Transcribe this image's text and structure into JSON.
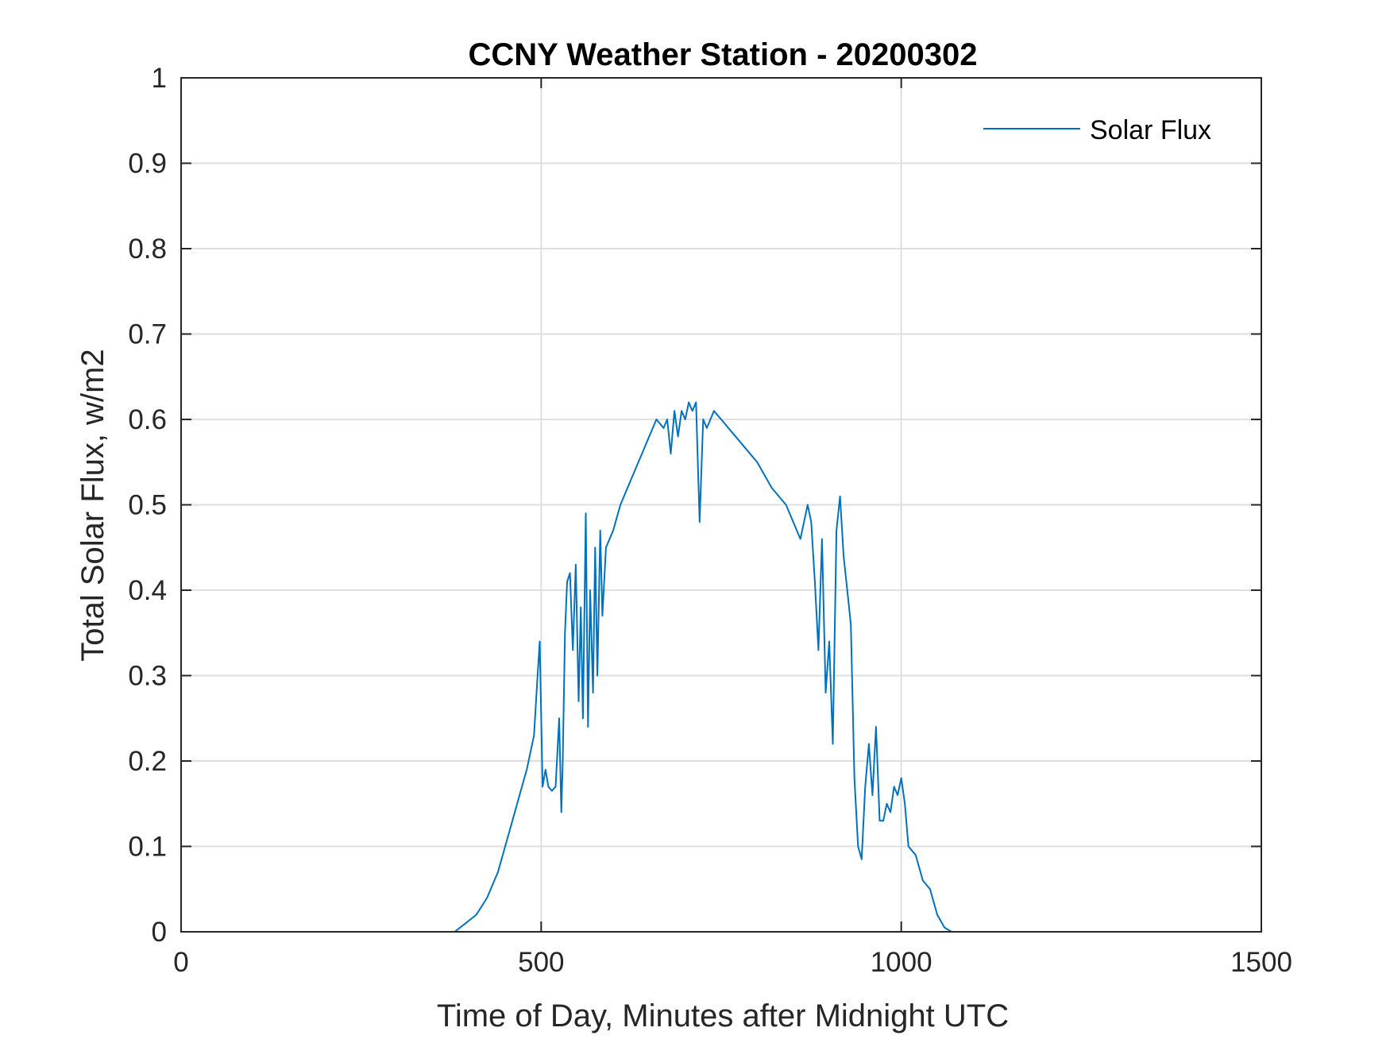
{
  "chart_data": {
    "type": "line",
    "title": "CCNY Weather Station - 20200302",
    "xlabel": "Time of Day, Minutes after Midnight UTC",
    "ylabel": "Total Solar Flux, w/m2",
    "xlim": [
      0,
      1500
    ],
    "ylim": [
      0,
      1
    ],
    "xticks": [
      0,
      500,
      1000,
      1500
    ],
    "yticks": [
      0,
      0.1,
      0.2,
      0.3,
      0.4,
      0.5,
      0.6,
      0.7,
      0.8,
      0.9,
      1
    ],
    "xtick_labels": [
      "0",
      "500",
      "1000",
      "1500"
    ],
    "ytick_labels": [
      "0",
      "0.1",
      "0.2",
      "0.3",
      "0.4",
      "0.5",
      "0.6",
      "0.7",
      "0.8",
      "0.9",
      "1"
    ],
    "grid": true,
    "legend_position": "top-right",
    "series": [
      {
        "name": "Solar Flux",
        "color": "#0072bd",
        "x": [
          0,
          380,
          395,
          410,
          425,
          440,
          450,
          460,
          470,
          480,
          490,
          495,
          498,
          502,
          506,
          510,
          515,
          520,
          525,
          528,
          530,
          533,
          536,
          540,
          544,
          548,
          552,
          555,
          558,
          562,
          565,
          568,
          572,
          575,
          578,
          582,
          585,
          590,
          600,
          610,
          620,
          630,
          640,
          650,
          660,
          670,
          675,
          680,
          685,
          690,
          695,
          700,
          705,
          710,
          715,
          720,
          725,
          730,
          740,
          750,
          760,
          780,
          800,
          820,
          840,
          860,
          870,
          875,
          880,
          885,
          890,
          895,
          900,
          905,
          910,
          915,
          920,
          925,
          930,
          935,
          940,
          945,
          950,
          955,
          960,
          965,
          970,
          975,
          980,
          985,
          990,
          995,
          1000,
          1005,
          1010,
          1020,
          1030,
          1040,
          1050,
          1060,
          1070,
          1080,
          1100,
          1200,
          1300,
          1450
        ],
        "y": [
          0,
          0,
          0.01,
          0.02,
          0.04,
          0.07,
          0.1,
          0.13,
          0.16,
          0.19,
          0.23,
          0.3,
          0.34,
          0.17,
          0.19,
          0.17,
          0.165,
          0.17,
          0.25,
          0.14,
          0.2,
          0.35,
          0.41,
          0.42,
          0.33,
          0.43,
          0.27,
          0.38,
          0.25,
          0.49,
          0.24,
          0.4,
          0.28,
          0.45,
          0.3,
          0.47,
          0.37,
          0.45,
          0.47,
          0.5,
          0.52,
          0.54,
          0.56,
          0.58,
          0.6,
          0.59,
          0.6,
          0.56,
          0.61,
          0.58,
          0.61,
          0.6,
          0.62,
          0.61,
          0.62,
          0.48,
          0.6,
          0.59,
          0.61,
          0.6,
          0.59,
          0.57,
          0.55,
          0.52,
          0.5,
          0.46,
          0.5,
          0.48,
          0.41,
          0.33,
          0.46,
          0.28,
          0.34,
          0.22,
          0.47,
          0.51,
          0.44,
          0.4,
          0.36,
          0.18,
          0.1,
          0.085,
          0.17,
          0.22,
          0.16,
          0.24,
          0.13,
          0.13,
          0.15,
          0.14,
          0.17,
          0.16,
          0.18,
          0.15,
          0.1,
          0.09,
          0.06,
          0.05,
          0.02,
          0.005,
          0,
          0,
          0,
          0,
          0,
          0
        ]
      }
    ]
  }
}
